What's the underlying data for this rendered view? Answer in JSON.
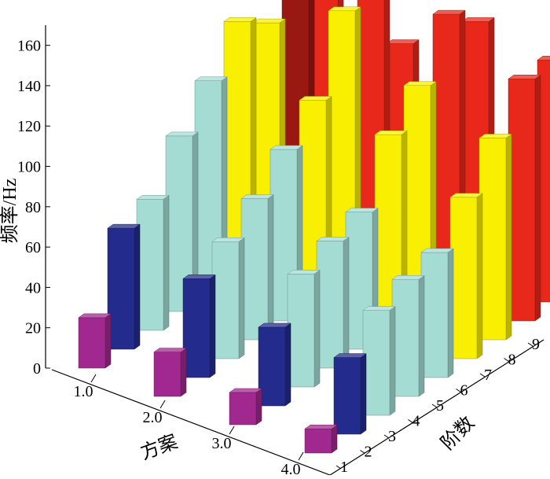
{
  "chart_data": {
    "type": "bar3d",
    "title": "",
    "ylabel": "频率/Hz",
    "xlabel": "方案",
    "zlabel": "阶数",
    "ylim": [
      0,
      170
    ],
    "y_ticks": [
      "0",
      "20",
      "40",
      "60",
      "80",
      "100",
      "120",
      "140",
      "160"
    ],
    "schemes": [
      "1.0",
      "2.0",
      "3.0",
      "4.0"
    ],
    "orders": [
      "1",
      "2",
      "3",
      "4",
      "5",
      "6",
      "7",
      "8",
      "9"
    ],
    "values": [
      [
        25,
        60,
        65,
        87,
        105,
        125,
        115,
        165,
        115
      ],
      [
        22,
        49,
        58,
        70,
        85,
        100,
        135,
        170,
        100
      ],
      [
        16,
        39,
        56,
        63,
        68,
        97,
        112,
        138,
        125
      ],
      [
        12,
        38,
        52,
        58,
        62,
        80,
        100,
        120,
        120
      ]
    ],
    "order_colors": [
      "#a0288f",
      "#232c8c",
      "#a4dcd4",
      "#a4dcd4",
      "#a4dcd4",
      "#f8f000",
      "#f8f000",
      "#e8281a",
      "#e8281a"
    ],
    "highlight": {
      "scheme": "1.0",
      "order": "8",
      "color": "#9a1812"
    }
  }
}
